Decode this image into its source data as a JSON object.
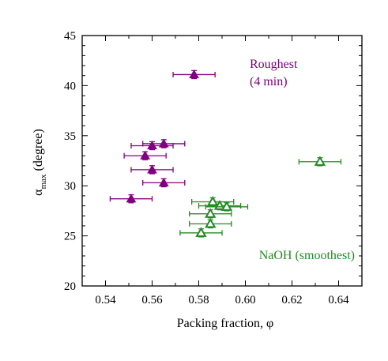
{
  "chart_data": {
    "type": "scatter",
    "title": "",
    "xlabel": "Packing fraction, φ",
    "ylabel": "α",
    "ylabel_sub": "max",
    "ylabel_suffix": " (degree)",
    "xlim": [
      0.53,
      0.65
    ],
    "ylim": [
      20,
      45
    ],
    "x_ticks": [
      0.54,
      0.56,
      0.58,
      0.6,
      0.62,
      0.64
    ],
    "x_tick_labels": [
      "0.54",
      "0.56",
      "0.58",
      "0.60",
      "0.62",
      "0.64"
    ],
    "y_ticks": [
      20,
      25,
      30,
      35,
      40,
      45
    ],
    "y_tick_labels": [
      "20",
      "25",
      "30",
      "35",
      "40",
      "45"
    ],
    "grid": false,
    "legend": "none",
    "series": [
      {
        "name": "Roughest (4 min)",
        "color": "#800080",
        "marker": "filled-triangle",
        "points": [
          {
            "x": 0.578,
            "y": 41.1,
            "xerr": 0.009,
            "yerr": 0.4
          },
          {
            "x": 0.565,
            "y": 34.2,
            "xerr": 0.009,
            "yerr": 0.4
          },
          {
            "x": 0.56,
            "y": 34.0,
            "xerr": 0.009,
            "yerr": 0.4
          },
          {
            "x": 0.557,
            "y": 33.0,
            "xerr": 0.009,
            "yerr": 0.4
          },
          {
            "x": 0.56,
            "y": 31.6,
            "xerr": 0.009,
            "yerr": 0.4
          },
          {
            "x": 0.565,
            "y": 30.3,
            "xerr": 0.009,
            "yerr": 0.4
          },
          {
            "x": 0.551,
            "y": 28.7,
            "xerr": 0.009,
            "yerr": 0.4
          }
        ]
      },
      {
        "name": "NaOH (smoothest)",
        "color": "#228b22",
        "marker": "open-triangle",
        "points": [
          {
            "x": 0.632,
            "y": 32.4,
            "xerr": 0.009,
            "yerr": 0.4
          },
          {
            "x": 0.586,
            "y": 28.4,
            "xerr": 0.009,
            "yerr": 0.4
          },
          {
            "x": 0.589,
            "y": 28.0,
            "xerr": 0.009,
            "yerr": 0.4
          },
          {
            "x": 0.592,
            "y": 27.9,
            "xerr": 0.009,
            "yerr": 0.4
          },
          {
            "x": 0.585,
            "y": 27.2,
            "xerr": 0.009,
            "yerr": 0.4
          },
          {
            "x": 0.585,
            "y": 26.2,
            "xerr": 0.009,
            "yerr": 0.4
          },
          {
            "x": 0.581,
            "y": 25.3,
            "xerr": 0.009,
            "yerr": 0.4
          }
        ]
      }
    ],
    "annotations": [
      {
        "text": "Roughest",
        "color": "#800080"
      },
      {
        "text": "(4 min)",
        "color": "#800080"
      },
      {
        "text": "NaOH (smoothest)",
        "color": "#228b22"
      }
    ]
  }
}
